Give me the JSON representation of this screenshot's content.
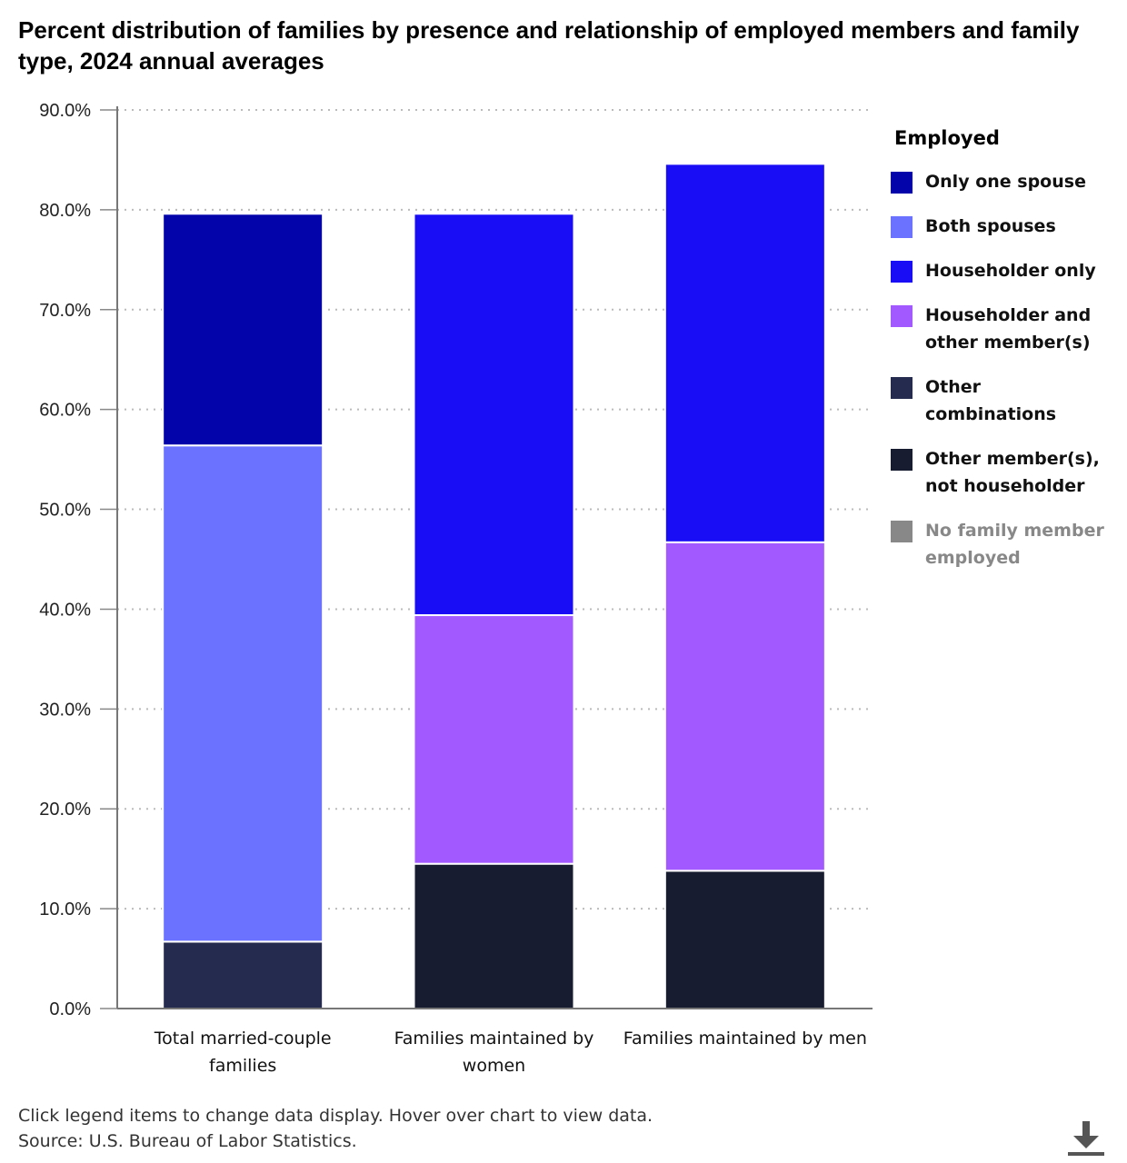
{
  "chart_data": {
    "type": "bar",
    "stacked": true,
    "title": "Percent distribution of families by presence and relationship of employed members and family type, 2024 annual averages",
    "xlabel": "",
    "ylabel": "",
    "ylim": [
      0,
      90
    ],
    "yticks": [
      "0.0%",
      "10.0%",
      "20.0%",
      "30.0%",
      "40.0%",
      "50.0%",
      "60.0%",
      "70.0%",
      "80.0%",
      "90.0%"
    ],
    "grid": true,
    "categories": [
      "Total married-couple families",
      "Families maintained by women",
      "Families maintained by men"
    ],
    "category_lines": [
      [
        "Total married-couple",
        "families"
      ],
      [
        "Families maintained by",
        "women"
      ],
      [
        "Families maintained by men"
      ]
    ],
    "legend_title": "Employed",
    "legend_position": "right",
    "series": [
      {
        "name": "Other combinations",
        "color": "#252b4f",
        "values": [
          6.7,
          0,
          0
        ],
        "hidden": false
      },
      {
        "name": "Other member(s), not householder",
        "color": "#171c30",
        "values": [
          0,
          14.5,
          13.8
        ],
        "hidden": false
      },
      {
        "name": "Both spouses",
        "color": "#6a72ff",
        "values": [
          49.7,
          0,
          0
        ],
        "hidden": false
      },
      {
        "name": "Householder and other member(s)",
        "color": "#a259ff",
        "values": [
          0,
          24.9,
          32.9
        ],
        "hidden": false
      },
      {
        "name": "Only one spouse",
        "color": "#0404ab",
        "values": [
          23.2,
          0,
          0
        ],
        "hidden": false
      },
      {
        "name": "Householder only",
        "color": "#190df5",
        "values": [
          0,
          40.2,
          37.9
        ],
        "hidden": false
      },
      {
        "name": "No family member employed",
        "color": "#888888",
        "values": [
          0,
          0,
          0
        ],
        "hidden": true
      }
    ]
  },
  "legend": {
    "title": "Employed",
    "items": [
      {
        "lines": [
          "Only one spouse"
        ],
        "color": "#0404ab",
        "disabled": false
      },
      {
        "lines": [
          "Both spouses"
        ],
        "color": "#6a72ff",
        "disabled": false
      },
      {
        "lines": [
          "Householder only"
        ],
        "color": "#190df5",
        "disabled": false
      },
      {
        "lines": [
          "Householder and",
          "other member(s)"
        ],
        "color": "#a259ff",
        "disabled": false
      },
      {
        "lines": [
          "Other",
          "combinations"
        ],
        "color": "#252b4f",
        "disabled": false
      },
      {
        "lines": [
          "Other member(s),",
          "not householder"
        ],
        "color": "#171c30",
        "disabled": false
      },
      {
        "lines": [
          "No family member",
          "employed"
        ],
        "color": "#888888",
        "disabled": true
      }
    ]
  },
  "footer": {
    "note": "Click legend items to change data display. Hover over chart to view data.",
    "source": "Source: U.S. Bureau of Labor Statistics."
  },
  "download_icon": "download-icon"
}
